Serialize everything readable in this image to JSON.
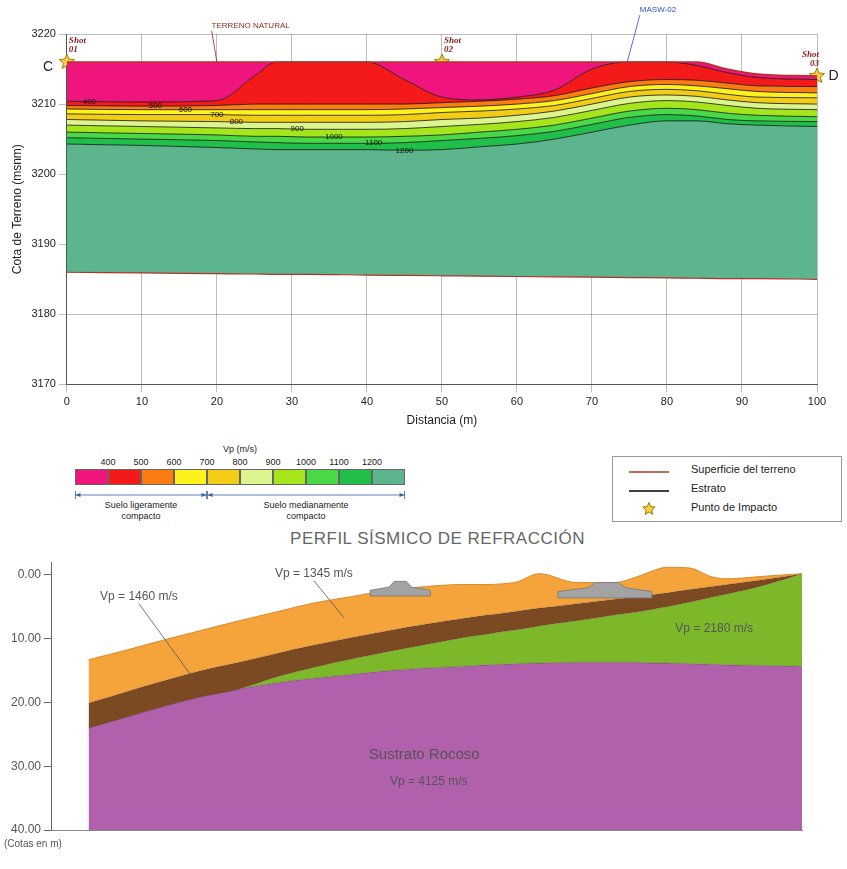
{
  "chart_data": [
    {
      "type": "area",
      "xlabel": "Distancia (m)",
      "ylabel": "Cota de Terreno (msnm)",
      "xlim": [
        0,
        100
      ],
      "xticks": [
        0,
        10,
        20,
        30,
        40,
        50,
        60,
        70,
        80,
        90,
        100
      ],
      "ylim": [
        3170,
        3220
      ],
      "yticks": [
        3170,
        3180,
        3190,
        3200,
        3210,
        3220
      ],
      "grid": true,
      "x": [
        0,
        10,
        20,
        25,
        28,
        32,
        40,
        45,
        50,
        55,
        60,
        65,
        70,
        75,
        80,
        84,
        88,
        92,
        100
      ],
      "series": [
        {
          "name": "Superficie del terreno",
          "type": "line",
          "color": "#b5322a",
          "values": [
            3216,
            3216,
            3216,
            3216,
            3216,
            3216,
            3216,
            3216,
            3216,
            3216,
            3216,
            3216,
            3216,
            3216,
            3216,
            3216,
            3215,
            3214.3,
            3214
          ]
        },
        {
          "name": "400",
          "type": "area",
          "color": "#f0157c",
          "label_x": 3,
          "values": [
            3210.4,
            3210.3,
            3210.5,
            3214,
            3216,
            3216,
            3216,
            3213.5,
            3211,
            3210.6,
            3211,
            3212,
            3215,
            3216,
            3216,
            3215.5,
            3214.5,
            3213.8,
            3213.5
          ]
        },
        {
          "name": "500",
          "type": "area",
          "color": "#f41a1a",
          "label_x": 11.8,
          "values": [
            3209.8,
            3209.7,
            3209.8,
            3210,
            3210,
            3210,
            3210,
            3210,
            3210.2,
            3210.4,
            3210.7,
            3211.2,
            3212.3,
            3213.2,
            3213.5,
            3213.4,
            3213,
            3212.6,
            3212.5
          ]
        },
        {
          "name": "600",
          "type": "area",
          "color": "#fb7d12",
          "label_x": 15.8,
          "values": [
            3209.3,
            3209.2,
            3209.2,
            3209.2,
            3209.2,
            3209.2,
            3209.2,
            3209.3,
            3209.5,
            3209.7,
            3210,
            3210.5,
            3211.5,
            3212.5,
            3212.8,
            3212.6,
            3212.2,
            3211.8,
            3211.6
          ]
        },
        {
          "name": "700",
          "type": "area",
          "color": "#fdf21c",
          "label_x": 20,
          "values": [
            3208.6,
            3208.5,
            3208.5,
            3208.4,
            3208.4,
            3208.4,
            3208.4,
            3208.5,
            3208.8,
            3209,
            3209.3,
            3209.8,
            3210.8,
            3211.8,
            3212.1,
            3211.9,
            3211.4,
            3211,
            3210.9
          ]
        },
        {
          "name": "800",
          "type": "area",
          "color": "#f3cc16",
          "label_x": 22.6,
          "values": [
            3207.8,
            3207.6,
            3207.5,
            3207.4,
            3207.4,
            3207.4,
            3207.4,
            3207.5,
            3207.8,
            3208,
            3208.4,
            3209,
            3210,
            3211,
            3211.3,
            3211.1,
            3210.6,
            3210.2,
            3210
          ]
        },
        {
          "name": "900",
          "type": "area",
          "color": "#ddf58f",
          "label_x": 30.7,
          "values": [
            3207,
            3206.8,
            3206.6,
            3206.5,
            3206.5,
            3206.4,
            3206.4,
            3206.5,
            3206.8,
            3207.1,
            3207.5,
            3208.1,
            3209.1,
            3210.1,
            3210.5,
            3210.3,
            3209.8,
            3209.4,
            3209.2
          ]
        },
        {
          "name": "1000",
          "type": "area",
          "color": "#a5e51c",
          "label_x": 35.6,
          "values": [
            3206,
            3205.8,
            3205.6,
            3205.4,
            3205.4,
            3205.3,
            3205.3,
            3205.4,
            3205.6,
            3206,
            3206.4,
            3207,
            3208,
            3209,
            3209.4,
            3209.2,
            3208.7,
            3208.4,
            3208.2
          ]
        },
        {
          "name": "1100",
          "type": "area",
          "color": "#49d846",
          "label_x": 40.9,
          "values": [
            3205.2,
            3205,
            3204.8,
            3204.6,
            3204.5,
            3204.4,
            3204.4,
            3204.5,
            3204.8,
            3205.1,
            3205.5,
            3206.1,
            3207.1,
            3208.1,
            3208.5,
            3208.3,
            3207.8,
            3207.6,
            3207.5
          ]
        },
        {
          "name": "1200",
          "type": "area",
          "color": "#1fbf4a",
          "label_x": 45,
          "values": [
            3204.3,
            3204.1,
            3203.8,
            3203.6,
            3203.5,
            3203.5,
            3203.5,
            3203.4,
            3203.5,
            3203.9,
            3204.3,
            3205,
            3206,
            3207,
            3207.6,
            3207.6,
            3207.2,
            3207,
            3206.8
          ]
        }
      ],
      "base": {
        "color": "#5db58d",
        "values": [
          3186,
          3185.9,
          3185.8,
          3185.75,
          3185.7,
          3185.7,
          3185.6,
          3185.55,
          3185.5,
          3185.45,
          3185.4,
          3185.35,
          3185.3,
          3185.25,
          3185.2,
          3185.15,
          3185.1,
          3185.1,
          3185
        ]
      },
      "points": {
        "marker": "star",
        "color": "#f5d33b",
        "labels": [
          "Shot 01",
          "Shot 02",
          "Shot 03"
        ],
        "x": [
          0,
          50,
          100
        ],
        "y": [
          3216,
          3216,
          3214
        ]
      },
      "annotations": [
        {
          "text": "TERRENO NATURAL",
          "x": 24.5,
          "y": 3221.2,
          "point": [
            20,
            3216
          ],
          "color": "#8b2a1a"
        },
        {
          "text": "MASW-02",
          "x": 78.8,
          "y": 3223.4,
          "point": [
            74.7,
            3216
          ],
          "color": "#2a4dbf"
        },
        {
          "text": "C",
          "x": -2.5,
          "y": 3215.3,
          "color": "#222222"
        },
        {
          "text": "D",
          "x": 102.2,
          "y": 3214,
          "color": "#222222"
        }
      ],
      "colorbar": {
        "title": "Vp (m/s)",
        "ticks": [
          400,
          500,
          600,
          700,
          800,
          900,
          1000,
          1100,
          1200
        ],
        "colors": [
          "#f0157c",
          "#f41a1a",
          "#fb7d12",
          "#fdf21c",
          "#f3cc16",
          "#ddf58f",
          "#a5e51c",
          "#49d846",
          "#1fbf4a",
          "#5db58d"
        ],
        "classes": [
          {
            "label": "Suelo ligeramente compacto",
            "to": 700
          },
          {
            "label": "Suelo medianamente compacto",
            "from": 700
          }
        ]
      },
      "legend": "lower right",
      "legend_items": [
        {
          "label": "Superficie del terreno",
          "marker": "line",
          "color": "#b5322a"
        },
        {
          "label": "Estrato",
          "marker": "line",
          "color": "#000000"
        },
        {
          "label": "Punto de Impacto",
          "marker": "star",
          "color": "#f5d33b"
        }
      ]
    },
    {
      "type": "area",
      "title": "PERFIL SÍSMICO DE REFRACCIÓN",
      "ylabel": "(Cotas en m)",
      "xlim": [
        0,
        100
      ],
      "xticks": [],
      "ylim": [
        40,
        -2
      ],
      "yticks": [
        {
          "value": 0,
          "label": "0.00"
        },
        {
          "value": 10,
          "label": "10.00"
        },
        {
          "value": 20,
          "label": "20.00"
        },
        {
          "value": 30,
          "label": "30.00"
        },
        {
          "value": 40,
          "label": "40.00"
        }
      ],
      "grid": false,
      "tick_labels": "y",
      "x": [
        5,
        10,
        15,
        20,
        25,
        30,
        35,
        40,
        45,
        50,
        55,
        58,
        60,
        62,
        65,
        70,
        75,
        78,
        80,
        82,
        85,
        88,
        90,
        95,
        100
      ],
      "surface": [
        13.3,
        11.8,
        10.2,
        8.7,
        7.2,
        5.8,
        4.4,
        3.4,
        2.4,
        1.8,
        1.5,
        1.5,
        1.4,
        1.1,
        -0.2,
        1.2,
        1.2,
        0.3,
        -0.6,
        -1.2,
        -1.1,
        0.3,
        0.6,
        0.2,
        -0.2
      ],
      "layers": [
        {
          "color": "#f4a43a",
          "values": [
            20.1,
            18.3,
            16.6,
            15.0,
            13.7,
            12.3,
            11.0,
            9.8,
            8.7,
            7.7,
            6.8,
            6.3,
            6.0,
            5.7,
            5.2,
            4.5,
            3.8,
            3.4,
            3.1,
            2.8,
            2.3,
            1.8,
            1.5,
            0.7,
            -0.2
          ],
          "labels": [
            {
              "text": "Vp = 1345 m/s",
              "x": 35,
              "y": -0.2,
              "point": [
                39,
                6.7
              ]
            }
          ]
        },
        {
          "color": "#7b4a23",
          "values": [
            24.0,
            22.3,
            20.6,
            19.1,
            17.9,
            16.0,
            14.5,
            13.2,
            12.0,
            10.9,
            9.8,
            9.3,
            8.9,
            8.6,
            8.0,
            7.2,
            6.3,
            5.8,
            5.4,
            5.0,
            4.3,
            3.5,
            3.0,
            1.6,
            -0.2
          ],
          "labels": [
            {
              "text": "Vp = 1460 m/s",
              "x": 11.7,
              "y": 3.4,
              "point": [
                19.3,
                16.8
              ]
            }
          ]
        },
        {
          "color": "#7db82b",
          "values": [
            24.0,
            22.3,
            20.6,
            19.1,
            17.9,
            16.9,
            16.2,
            15.6,
            15.0,
            14.6,
            14.3,
            14.1,
            14.0,
            13.9,
            13.8,
            13.7,
            13.7,
            13.7,
            13.8,
            13.8,
            13.9,
            14.0,
            14.1,
            14.2,
            14.3
          ],
          "labels": [
            {
              "text": "Vp = 2180 m/s",
              "x": 88.3,
              "y": 8.4
            }
          ]
        },
        {
          "color": "#b160ab",
          "labels": [
            {
              "text": "Sustrato Rocoso",
              "x": 49.7,
              "y": 28.2
            },
            {
              "text": "Vp = 4125 m/s",
              "x": 50.3,
              "y": 32.4
            }
          ]
        }
      ],
      "structures": [
        {
          "x": [
            42.5,
            50.5,
            50.5,
            48,
            47.3,
            45.7,
            45,
            42.5
          ],
          "y": [
            3.3,
            3.3,
            2.4,
            1.9,
            1.0,
            1.0,
            1.9,
            2.4
          ]
        },
        {
          "x": [
            67.5,
            80,
            80,
            76.5,
            75.5,
            72.5,
            71.5,
            67.5
          ],
          "y": [
            3.6,
            3.6,
            2.6,
            2.0,
            1.2,
            1.2,
            2.0,
            2.6
          ]
        }
      ]
    }
  ]
}
